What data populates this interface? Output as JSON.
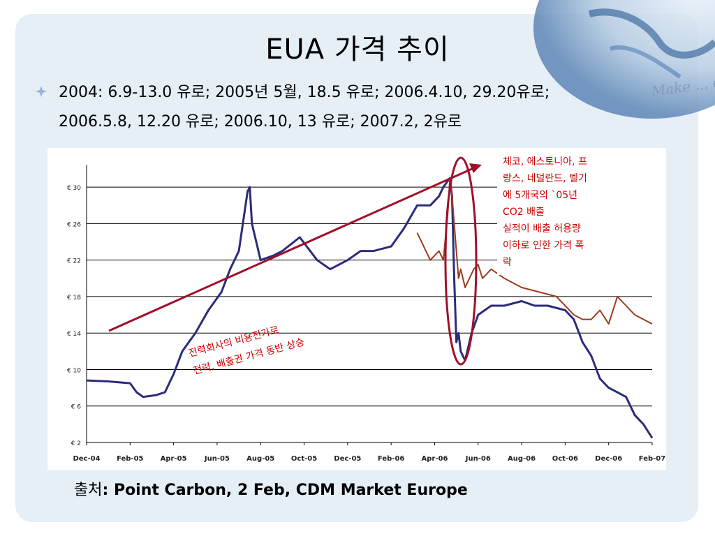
{
  "slide": {
    "title": "EUA 가격 추이",
    "bullet": "2004: 6.9-13.0 유로; 2005년 5월, 18.5 유로; 2006.4.10, 29.20유로; 2006.5.8, 12.20 유로; 2006.10, 13 유로; 2007.2, 2유로",
    "bullet_line1": "2004: 6.9-13.0 유로; 2005년 5월, 18.5 유로; 2006.4.10, 29.20유로;",
    "bullet_line2": "2006.5.8, 12.20 유로; 2006.10, 13 유로; 2007.2, 2유로",
    "deco_text": "Make ... of the business",
    "source_prefix": "출처",
    "source_body": ": Point Carbon, 2 Feb, CDM Market Europe"
  },
  "colors": {
    "series_blue": "#2b2c7a",
    "series_brown": "#9b3b1e",
    "annotation": "#cc0000",
    "arrow": "#a0102a",
    "slide_bg": "#e6eef6"
  },
  "chart_data": {
    "type": "line",
    "title": "",
    "xlabel": "",
    "ylabel": "",
    "x_categories": [
      "Dec-04",
      "Feb-05",
      "Apr-05",
      "Jun-05",
      "Aug-05",
      "Oct-05",
      "Dec-05",
      "Feb-06",
      "Apr-06",
      "Jun-06",
      "Aug-06",
      "Oct-06",
      "Dec-06",
      "Feb-07"
    ],
    "y_ticks": [
      2,
      6,
      10,
      14,
      18,
      22,
      26,
      30
    ],
    "y_tick_labels": [
      "€ 2",
      "€ 6",
      "€ 10",
      "€ 14",
      "€ 18",
      "€ 22",
      "€ 26",
      "€ 30"
    ],
    "ylim": [
      2,
      32
    ],
    "grid": "horizontal",
    "series": [
      {
        "x": [
          0,
          0.5,
          1,
          1.15,
          1.3,
          1.6,
          1.8,
          2,
          2.2,
          2.5,
          2.8,
          3.1,
          3.3,
          3.5,
          3.7,
          3.75,
          3.8,
          4,
          4.3,
          4.5,
          4.9,
          5.3,
          5.6,
          6,
          6.3,
          6.6,
          7,
          7.3,
          7.6,
          7.9,
          8.1,
          8.2,
          8.35,
          8.4,
          8.45,
          8.5,
          8.55,
          8.6,
          8.7,
          8.85,
          9,
          9.3,
          9.6,
          10,
          10.3,
          10.6,
          11,
          11.2,
          11.4,
          11.6,
          11.8,
          12,
          12.2,
          12.4,
          12.6,
          12.8,
          13
        ],
        "y": [
          8.8,
          8.7,
          8.5,
          7.5,
          7.0,
          7.2,
          7.5,
          9.5,
          12,
          14,
          16.5,
          18.5,
          21,
          23,
          29.5,
          30,
          26,
          22,
          22.5,
          23,
          24.5,
          22,
          21,
          22,
          23,
          23,
          23.5,
          25.5,
          28,
          28,
          29,
          30,
          31,
          29,
          20,
          13,
          14,
          12,
          11,
          14,
          16,
          17,
          17,
          17.5,
          17,
          17,
          16.5,
          15.5,
          13,
          11.5,
          9,
          8,
          7.5,
          7,
          5,
          4,
          2.5
        ]
      },
      {
        "x": [
          7.6,
          7.9,
          8.1,
          8.2,
          8.3,
          8.35,
          8.4,
          8.45,
          8.5,
          8.55,
          8.6,
          8.7,
          8.8,
          8.9,
          9,
          9.1,
          9.3,
          9.6,
          10,
          10.4,
          10.8,
          11,
          11.2,
          11.4,
          11.6,
          11.8,
          12,
          12.2,
          12.4,
          12.6,
          12.8,
          13
        ],
        "y": [
          25,
          22,
          23,
          22,
          27,
          31,
          29,
          26,
          23,
          20,
          21,
          19,
          20,
          21,
          21.5,
          20,
          21,
          20,
          19,
          18.5,
          18,
          17,
          16,
          15.5,
          15.5,
          16.5,
          15,
          18,
          17,
          16,
          15.5,
          15
        ]
      }
    ],
    "annotations": [
      {
        "text": "전력회사의 비용전가로 전력, 배출권 가격 동반 상승",
        "line1": "전력회사의 비용전가로",
        "line2": "전력, 배출권 가격 동반 상승"
      },
      {
        "text": "체코, 에스토니아, 프랑스, 네덜란드, 벨기에 5개국의 `05년 CO2 배출 실적이 배출 허용량 이하로 인한 가격 폭락",
        "lines": [
          "체코, 에스토니아, 프",
          "랑스, 네덜란드, 벨기",
          "에 5개국의 `05년",
          "CO2 배출",
          "실적이 배출 허용량",
          "이하로 인한 가격 폭",
          "락"
        ]
      }
    ]
  }
}
